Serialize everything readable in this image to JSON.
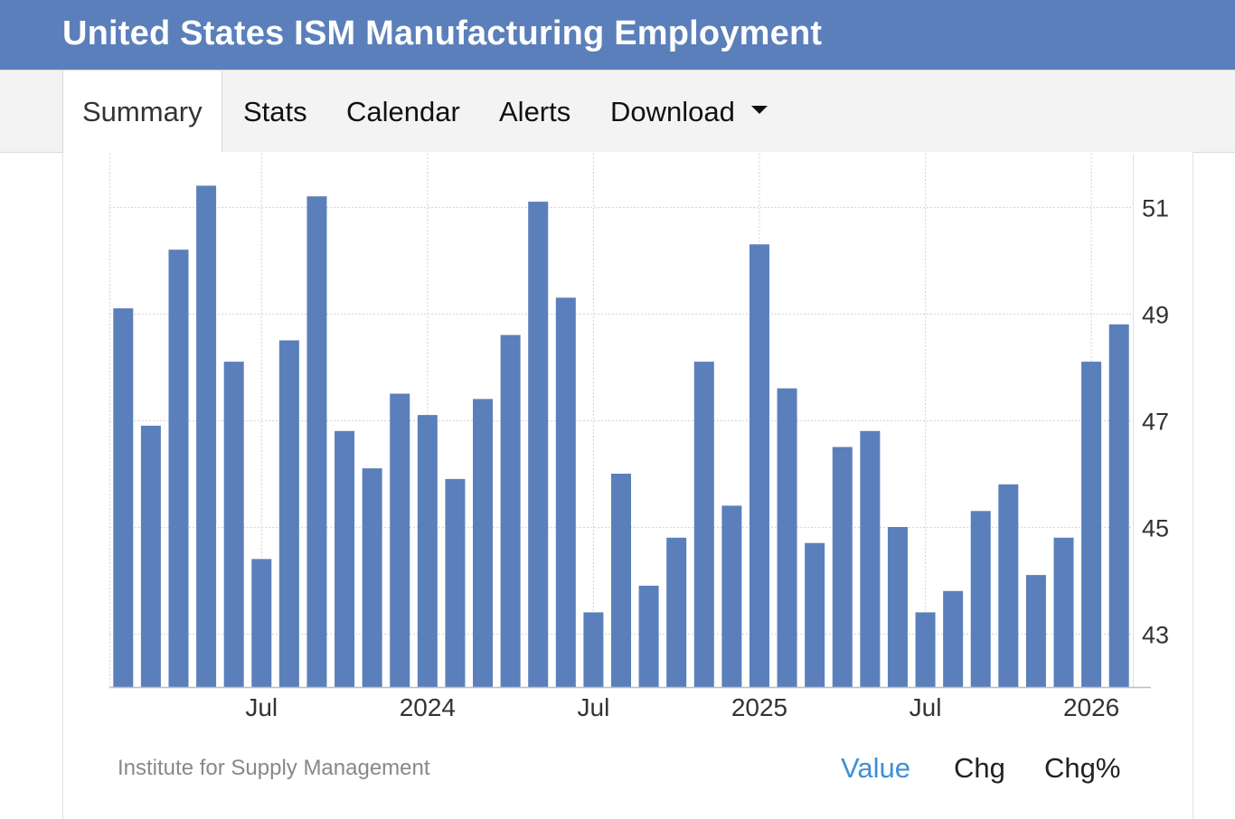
{
  "header": {
    "title": "United States ISM Manufacturing Employment"
  },
  "tabs": [
    {
      "label": "Summary",
      "active": true
    },
    {
      "label": "Stats"
    },
    {
      "label": "Calendar"
    },
    {
      "label": "Alerts"
    },
    {
      "label": "Download",
      "dropdown": true
    }
  ],
  "footer": {
    "source": "Institute for Supply Management",
    "toggles": [
      "Value",
      "Chg",
      "Chg%"
    ],
    "active_toggle": "Value"
  },
  "colors": {
    "header_bg": "#5b7fba",
    "bar": "#5b7fba",
    "active_toggle": "#3e8fd8"
  },
  "chart_data": {
    "type": "bar",
    "title": "",
    "xlabel": "",
    "ylabel": "",
    "ylim": [
      42,
      52
    ],
    "yticks": [
      43,
      45,
      47,
      49,
      51
    ],
    "y_axis_position": "right",
    "grid": true,
    "x_tick_labels": [
      "Jul",
      "2024",
      "Jul",
      "2025",
      "Jul",
      "2026"
    ],
    "series": [
      {
        "values": [
          49.1,
          46.9,
          50.2,
          51.4,
          48.1,
          44.4,
          48.5,
          51.2,
          46.8,
          46.1,
          47.5,
          47.1,
          45.9,
          47.4,
          48.6,
          51.1,
          49.3,
          43.4,
          46.0,
          43.9,
          44.8,
          48.1,
          45.4,
          50.3,
          47.6,
          44.7,
          46.5,
          46.8,
          45.0,
          43.4,
          43.8,
          45.3,
          45.8,
          44.1,
          44.8,
          48.1,
          48.8
        ]
      }
    ]
  }
}
